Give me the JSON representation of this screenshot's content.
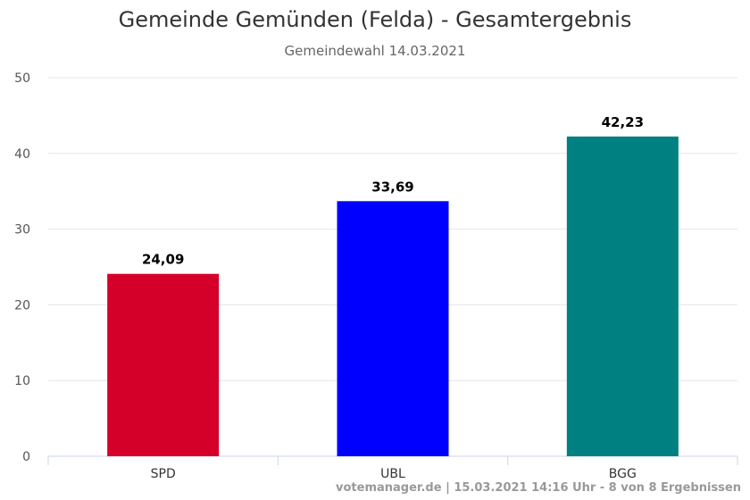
{
  "title": "Gemeinde Gemünden (Felda) - Gesamtergebnis",
  "subtitle": "Gemeindewahl 14.03.2021",
  "credits": "votemanager.de | 15.03.2021 14:16 Uhr - 8 von 8 Ergebnissen",
  "chart_data": {
    "type": "bar",
    "categories": [
      "SPD",
      "UBL",
      "BGG"
    ],
    "values": [
      24.09,
      33.69,
      42.23
    ],
    "value_labels": [
      "24,09",
      "33,69",
      "42,23"
    ],
    "colors": [
      "#d4002a",
      "#0000ff",
      "#008080"
    ],
    "ylim": [
      0,
      50
    ],
    "yticks": [
      0,
      10,
      20,
      30,
      40,
      50
    ],
    "ytick_labels": [
      "0",
      "10",
      "20",
      "30",
      "40",
      "50"
    ],
    "grid": true,
    "xlabel": "",
    "ylabel": ""
  }
}
